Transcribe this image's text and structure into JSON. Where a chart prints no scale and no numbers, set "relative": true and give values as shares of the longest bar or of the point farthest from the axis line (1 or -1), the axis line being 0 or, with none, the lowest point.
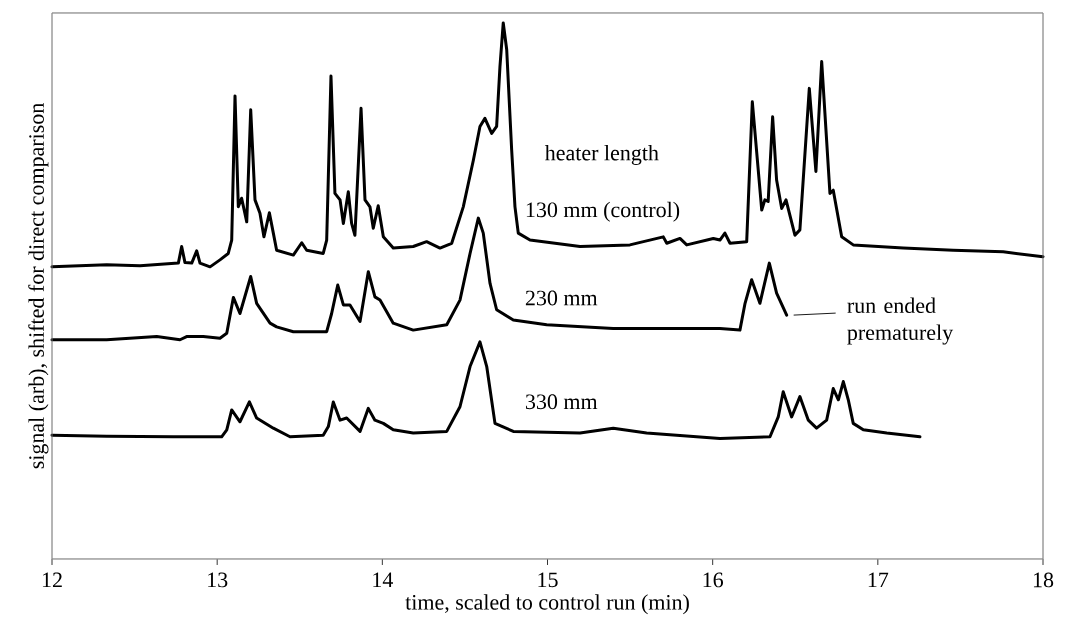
{
  "chart_data": {
    "type": "line",
    "relative": true,
    "xlabel": "time, scaled to control run (min)",
    "ylabel": "signal (arb), shifted for direct comparison",
    "legend_title": "heater length",
    "xlim": [
      12,
      18
    ],
    "xticks": [
      12,
      13,
      14,
      15,
      16,
      17,
      18
    ],
    "annotations": [
      {
        "text": "run ended prematurely",
        "x": 16.448,
        "y": 0.455
      }
    ],
    "series": [
      {
        "name": "130 mm (control)",
        "color": "#000000",
        "x": [
          12.0,
          12.331,
          12.533,
          12.765,
          12.785,
          12.805,
          12.846,
          12.876,
          12.896,
          12.957,
          13.017,
          13.067,
          13.088,
          13.108,
          13.128,
          13.148,
          13.179,
          13.203,
          13.229,
          13.259,
          13.283,
          13.316,
          13.34,
          13.36,
          13.461,
          13.512,
          13.542,
          13.642,
          13.663,
          13.689,
          13.713,
          13.744,
          13.764,
          13.794,
          13.814,
          13.834,
          13.871,
          13.895,
          13.925,
          13.945,
          13.975,
          14.006,
          14.066,
          14.187,
          14.268,
          14.349,
          14.42,
          14.49,
          14.551,
          14.591,
          14.621,
          14.662,
          14.692,
          14.712,
          14.732,
          14.753,
          14.783,
          14.803,
          14.823,
          14.894,
          15.197,
          15.499,
          15.701,
          15.722,
          15.802,
          15.843,
          16.004,
          16.044,
          16.074,
          16.105,
          16.206,
          16.24,
          16.297,
          16.316,
          16.336,
          16.363,
          16.387,
          16.418,
          16.444,
          16.498,
          16.528,
          16.585,
          16.625,
          16.66,
          16.71,
          16.73,
          16.781,
          16.851,
          17.154,
          17.456,
          17.759,
          18.0
        ],
        "values": [
          0.545,
          0.549,
          0.547,
          0.552,
          0.583,
          0.553,
          0.552,
          0.575,
          0.552,
          0.545,
          0.558,
          0.57,
          0.595,
          0.864,
          0.657,
          0.673,
          0.629,
          0.838,
          0.67,
          0.645,
          0.601,
          0.646,
          0.608,
          0.576,
          0.567,
          0.59,
          0.576,
          0.57,
          0.595,
          0.901,
          0.682,
          0.67,
          0.626,
          0.685,
          0.626,
          0.604,
          0.841,
          0.67,
          0.657,
          0.617,
          0.659,
          0.601,
          0.58,
          0.583,
          0.592,
          0.58,
          0.589,
          0.657,
          0.744,
          0.807,
          0.822,
          0.794,
          0.807,
          0.918,
          1.0,
          0.95,
          0.763,
          0.657,
          0.608,
          0.595,
          0.583,
          0.586,
          0.601,
          0.589,
          0.598,
          0.586,
          0.598,
          0.595,
          0.608,
          0.589,
          0.592,
          0.853,
          0.651,
          0.67,
          0.667,
          0.825,
          0.707,
          0.654,
          0.67,
          0.604,
          0.614,
          0.878,
          0.723,
          0.928,
          0.682,
          0.688,
          0.601,
          0.586,
          0.58,
          0.576,
          0.573,
          0.564
        ]
      },
      {
        "name": "230 mm",
        "color": "#000000",
        "x": [
          12.0,
          12.331,
          12.634,
          12.775,
          12.815,
          12.916,
          13.017,
          13.058,
          13.098,
          13.138,
          13.203,
          13.239,
          13.32,
          13.36,
          13.461,
          13.663,
          13.693,
          13.73,
          13.764,
          13.804,
          13.865,
          13.915,
          13.955,
          13.986,
          14.066,
          14.187,
          14.39,
          14.47,
          14.531,
          14.581,
          14.611,
          14.652,
          14.692,
          14.793,
          14.995,
          15.398,
          16.004,
          16.044,
          16.165,
          16.196,
          16.236,
          16.286,
          16.343,
          16.387,
          16.448
        ],
        "values": [
          0.409,
          0.409,
          0.415,
          0.409,
          0.415,
          0.415,
          0.412,
          0.421,
          0.488,
          0.458,
          0.527,
          0.477,
          0.44,
          0.433,
          0.424,
          0.424,
          0.458,
          0.511,
          0.474,
          0.474,
          0.443,
          0.536,
          0.489,
          0.483,
          0.44,
          0.427,
          0.437,
          0.483,
          0.57,
          0.636,
          0.608,
          0.514,
          0.465,
          0.446,
          0.437,
          0.43,
          0.43,
          0.43,
          0.427,
          0.477,
          0.521,
          0.477,
          0.552,
          0.496,
          0.455
        ]
      },
      {
        "name": "330 mm",
        "color": "#000000",
        "x": [
          12.0,
          12.331,
          12.734,
          13.027,
          13.058,
          13.088,
          13.138,
          13.195,
          13.239,
          13.34,
          13.441,
          13.642,
          13.673,
          13.703,
          13.744,
          13.784,
          13.865,
          13.915,
          13.955,
          14.006,
          14.066,
          14.187,
          14.39,
          14.47,
          14.531,
          14.591,
          14.632,
          14.682,
          14.793,
          15.197,
          15.398,
          15.6,
          16.044,
          16.347,
          16.397,
          16.427,
          16.478,
          16.528,
          16.579,
          16.629,
          16.69,
          16.73,
          16.761,
          16.791,
          16.821,
          16.851,
          16.912,
          17.054,
          17.255
        ],
        "values": [
          0.231,
          0.229,
          0.228,
          0.228,
          0.241,
          0.278,
          0.256,
          0.293,
          0.263,
          0.244,
          0.228,
          0.231,
          0.247,
          0.293,
          0.259,
          0.263,
          0.238,
          0.281,
          0.259,
          0.253,
          0.241,
          0.235,
          0.238,
          0.284,
          0.359,
          0.405,
          0.359,
          0.253,
          0.238,
          0.235,
          0.244,
          0.235,
          0.225,
          0.228,
          0.265,
          0.312,
          0.265,
          0.303,
          0.259,
          0.244,
          0.259,
          0.318,
          0.297,
          0.331,
          0.297,
          0.253,
          0.241,
          0.235,
          0.228
        ]
      }
    ]
  }
}
